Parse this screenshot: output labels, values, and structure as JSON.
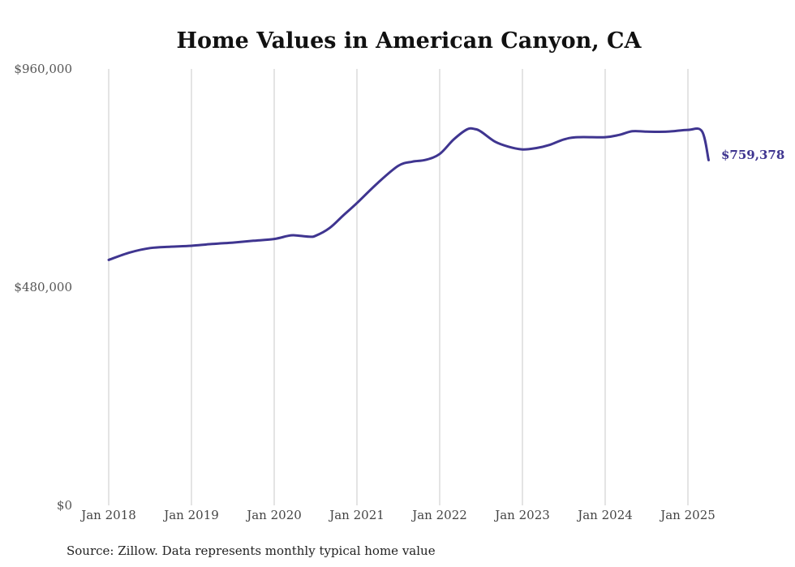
{
  "chart_data": {
    "type": "line",
    "title": "Home Values in American Canyon, CA",
    "xlabel": "",
    "ylabel": "",
    "ylim": [
      0,
      960000
    ],
    "y_ticks": [
      "$0",
      "$480,000",
      "$960,000"
    ],
    "y_tick_values": [
      0,
      480000,
      960000
    ],
    "x_ticks": [
      "Jan 2018",
      "Jan 2019",
      "Jan 2020",
      "Jan 2021",
      "Jan 2022",
      "Jan 2023",
      "Jan 2024",
      "Jan 2025"
    ],
    "x_tick_values": [
      2018,
      2019,
      2020,
      2021,
      2022,
      2023,
      2024,
      2025
    ],
    "grid": "vertical",
    "legend": "none",
    "line_color": "#3f3590",
    "end_label": "$759,378",
    "source_note": "Source: Zillow. Data represents monthly typical home value",
    "series": [
      {
        "x": [
          2018.0,
          2018.25,
          2018.5,
          2018.75,
          2019.0,
          2019.25,
          2019.5,
          2019.75,
          2020.0,
          2020.17,
          2020.25,
          2020.42,
          2020.5,
          2020.67,
          2020.83,
          2021.0,
          2021.25,
          2021.5,
          2021.67,
          2021.83,
          2022.0,
          2022.17,
          2022.33,
          2022.42,
          2022.5,
          2022.67,
          2022.83,
          2023.0,
          2023.17,
          2023.33,
          2023.5,
          2023.67,
          2024.0,
          2024.17,
          2024.33,
          2024.5,
          2024.75,
          2025.0,
          2025.17,
          2025.25
        ],
        "y": [
          540000,
          556000,
          566000,
          569000,
          571000,
          575000,
          578000,
          582000,
          586000,
          593000,
          594000,
          591000,
          593000,
          610000,
          637000,
          665000,
          709000,
          747000,
          756000,
          760000,
          773000,
          805000,
          827000,
          828000,
          822000,
          800000,
          789000,
          783000,
          786000,
          793000,
          805000,
          810000,
          810000,
          815000,
          823000,
          822000,
          822000,
          826000,
          823000,
          759378
        ]
      }
    ]
  }
}
